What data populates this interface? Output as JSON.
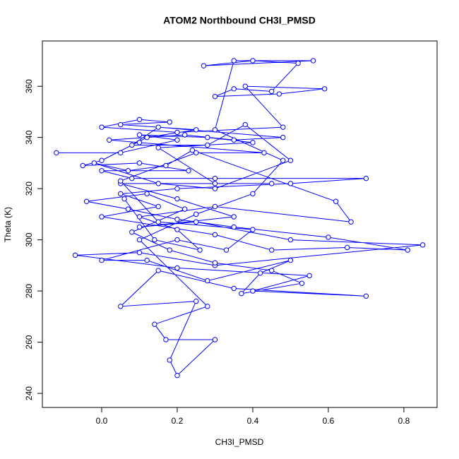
{
  "chart_data": {
    "type": "line",
    "markers": true,
    "title": "ATOM2 Northbound CH3I_PMSD",
    "x_label": "CH3I_PMSD",
    "y_label": "Theta (K)",
    "color": "#0000ff",
    "xlim": [
      -0.157,
      0.888
    ],
    "ylim": [
      234.5,
      377.7
    ],
    "xticks": [
      {
        "value": 0,
        "label": "0.0"
      },
      0.2,
      0.4,
      0.6,
      0.8
    ],
    "yticks": [
      240,
      260,
      280,
      300,
      320,
      340,
      360
    ],
    "x": [
      -0.12,
      0.05,
      0.2,
      0.1,
      0.28,
      0.4,
      0.15,
      0.3,
      0.45,
      0.05,
      0.2,
      0.35,
      0.1,
      0.25,
      0.5,
      0.85,
      0.3,
      0.1,
      -0.07,
      0.2,
      0.55,
      0.4,
      0.7,
      0.35,
      0.15,
      0.05,
      0.25,
      0.18,
      0.2,
      0.3,
      0.17,
      0.14,
      0.28,
      0.1,
      0.25,
      0.4,
      0.48,
      0.3,
      0.35,
      0.56,
      0.27,
      0.4,
      0.52,
      0.45,
      0.35,
      0.3,
      0.47,
      0.59,
      0.38,
      0.48,
      0.2,
      0.0,
      0.1,
      0.18,
      0.05,
      0.25,
      0.12,
      0.0,
      -0.05,
      0.1,
      0.23,
      0.0,
      0.08,
      0.3,
      0.7,
      0.5,
      0.2,
      0.05,
      0.15,
      0.0,
      0.3,
      0.45,
      0.65,
      0.81,
      0.6,
      0.35,
      0.2,
      0.07,
      -0.04,
      0.12,
      0.22,
      0.08,
      0.18,
      0.3,
      0.45,
      0.53,
      0.37,
      0.42,
      0.5,
      0.28,
      0.12,
      0.0,
      0.2,
      0.33,
      0.4,
      0.15,
      0.05,
      0.25,
      0.43,
      0.1,
      0.02,
      0.22,
      0.35,
      0.48,
      0.15,
      0.08,
      0.28,
      0.38,
      0.5,
      0.3,
      0.15,
      -0.02,
      0.07,
      0.17,
      0.24,
      0.62,
      0.66,
      0.3,
      0.1,
      0.2,
      0.26,
      0.14,
      0.06
    ],
    "y": [
      334,
      334,
      339,
      341,
      340,
      338,
      336,
      322,
      322,
      322,
      316,
      309,
      305,
      307,
      300,
      298,
      290,
      295,
      294,
      289,
      286,
      280,
      278,
      281,
      288,
      274,
      276,
      253,
      247,
      261,
      261,
      267,
      274,
      300,
      310,
      318,
      331,
      343,
      370,
      370,
      368,
      370,
      369,
      358,
      359,
      356,
      357,
      359,
      360,
      344,
      342,
      344,
      347,
      346,
      345,
      343,
      340,
      331,
      329,
      330,
      327,
      327,
      324,
      324,
      324,
      322,
      320,
      318,
      313,
      309,
      302,
      296,
      297,
      296,
      301,
      305,
      308,
      312,
      315,
      318,
      312,
      303,
      296,
      291,
      288,
      283,
      279,
      287,
      292,
      284,
      292,
      292,
      300,
      296,
      304,
      307,
      323,
      334,
      334,
      338,
      339,
      341,
      339,
      340,
      344,
      337,
      337,
      345,
      331,
      320,
      322,
      330,
      327,
      329,
      335,
      315,
      307,
      313,
      309,
      304,
      296,
      300,
      316
    ]
  }
}
